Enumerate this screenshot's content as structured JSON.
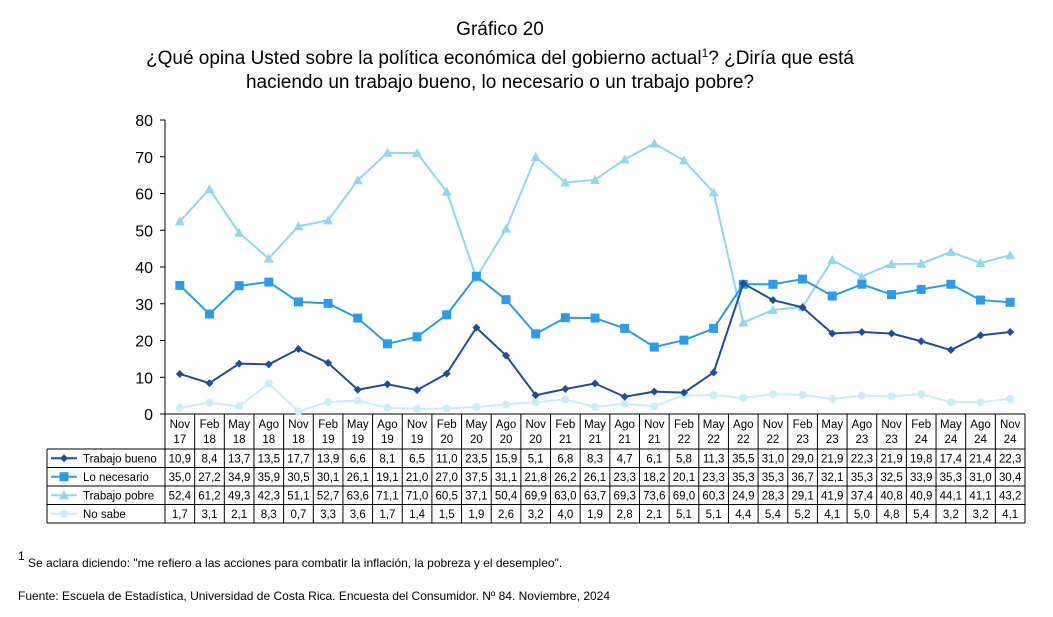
{
  "title": {
    "line1": "Gráfico 20",
    "line2_text": "¿Qué opina Usted sobre la política económica del gobierno actual",
    "line2_sup": "1",
    "line2_rest": "?  ¿Diría que está",
    "line3": "haciendo un trabajo bueno, lo necesario o un trabajo pobre?"
  },
  "footnote": {
    "sup": "1",
    "text": " Se aclara diciendo: \"me refiero a las acciones para combatir la inflación, la pobreza y el desempleo\"."
  },
  "source": "Fuente: Escuela de Estadística, Universidad de Costa Rica. Encuesta del Consumidor. Nº 84. Noviembre, 2024",
  "chart_data": {
    "type": "line",
    "ylim": [
      0,
      80
    ],
    "yticks": [
      0,
      10,
      20,
      30,
      40,
      50,
      60,
      70,
      80
    ],
    "grid": false,
    "legend": "data-table",
    "categories": [
      [
        "Nov",
        "17"
      ],
      [
        "Feb",
        "18"
      ],
      [
        "May",
        "18"
      ],
      [
        "Ago",
        "18"
      ],
      [
        "Nov",
        "18"
      ],
      [
        "Feb",
        "19"
      ],
      [
        "May",
        "19"
      ],
      [
        "Ago",
        "19"
      ],
      [
        "Nov",
        "19"
      ],
      [
        "Feb",
        "20"
      ],
      [
        "May",
        "20"
      ],
      [
        "Ago",
        "20"
      ],
      [
        "Nov",
        "20"
      ],
      [
        "Feb",
        "21"
      ],
      [
        "May",
        "21"
      ],
      [
        "Ago",
        "21"
      ],
      [
        "Nov",
        "21"
      ],
      [
        "Feb",
        "22"
      ],
      [
        "May",
        "22"
      ],
      [
        "Ago",
        "22"
      ],
      [
        "Nov",
        "22"
      ],
      [
        "Feb",
        "23"
      ],
      [
        "May",
        "23"
      ],
      [
        "Ago",
        "23"
      ],
      [
        "Nov",
        "23"
      ],
      [
        "Feb",
        "24"
      ],
      [
        "May",
        "24"
      ],
      [
        "Ago",
        "24"
      ],
      [
        "Nov",
        "24"
      ]
    ],
    "series": [
      {
        "name": "Trabajo bueno",
        "color": "#1F4E99",
        "marker": "diamond",
        "values": [
          10.9,
          8.4,
          13.7,
          13.5,
          17.7,
          13.9,
          6.6,
          8.1,
          6.5,
          11.0,
          23.5,
          15.9,
          5.1,
          6.8,
          8.3,
          4.7,
          6.1,
          5.8,
          11.3,
          35.5,
          31.0,
          29.0,
          21.9,
          22.3,
          21.9,
          19.8,
          17.4,
          21.4,
          22.3
        ],
        "labels": [
          "10,9",
          "8,4",
          "13,7",
          "13,5",
          "17,7",
          "13,9",
          "6,6",
          "8,1",
          "6,5",
          "11,0",
          "23,5",
          "15,9",
          "5,1",
          "6,8",
          "8,3",
          "4,7",
          "6,1",
          "5,8",
          "11,3",
          "35,5",
          "31,0",
          "29,0",
          "21,9",
          "22,3",
          "21,9",
          "19,8",
          "17,4",
          "21,4",
          "22,3"
        ]
      },
      {
        "name": "Lo necesario",
        "color": "#2E9BE6",
        "marker": "square",
        "values": [
          35.0,
          27.2,
          34.9,
          35.9,
          30.5,
          30.1,
          26.1,
          19.1,
          21.0,
          27.0,
          37.5,
          31.1,
          21.8,
          26.2,
          26.1,
          23.3,
          18.2,
          20.1,
          23.3,
          35.3,
          35.3,
          36.7,
          32.1,
          35.3,
          32.5,
          33.9,
          35.3,
          31.0,
          30.4
        ],
        "labels": [
          "35,0",
          "27,2",
          "34,9",
          "35,9",
          "30,5",
          "30,1",
          "26,1",
          "19,1",
          "21,0",
          "27,0",
          "37,5",
          "31,1",
          "21,8",
          "26,2",
          "26,1",
          "23,3",
          "18,2",
          "20,1",
          "23,3",
          "35,3",
          "35,3",
          "36,7",
          "32,1",
          "35,3",
          "32,5",
          "33,9",
          "35,3",
          "31,0",
          "30,4"
        ]
      },
      {
        "name": "Trabajo pobre",
        "color": "#8FD8EE",
        "marker": "triangle",
        "values": [
          52.4,
          61.2,
          49.3,
          42.3,
          51.1,
          52.7,
          63.6,
          71.1,
          71.0,
          60.5,
          37.1,
          50.4,
          69.9,
          63.0,
          63.7,
          69.3,
          73.6,
          69.0,
          60.3,
          24.9,
          28.3,
          29.1,
          41.9,
          37.4,
          40.8,
          40.9,
          44.1,
          41.1,
          43.2
        ],
        "labels": [
          "52,4",
          "61,2",
          "49,3",
          "42,3",
          "51,1",
          "52,7",
          "63,6",
          "71,1",
          "71,0",
          "60,5",
          "37,1",
          "50,4",
          "69,9",
          "63,0",
          "63,7",
          "69,3",
          "73,6",
          "69,0",
          "60,3",
          "24,9",
          "28,3",
          "29,1",
          "41,9",
          "37,4",
          "40,8",
          "40,9",
          "44,1",
          "41,1",
          "43,2"
        ]
      },
      {
        "name": "No sabe",
        "color": "#C9EEF8",
        "marker": "circle",
        "values": [
          1.7,
          3.1,
          2.1,
          8.3,
          0.7,
          3.3,
          3.6,
          1.7,
          1.4,
          1.5,
          1.9,
          2.6,
          3.2,
          4.0,
          1.9,
          2.8,
          2.1,
          5.1,
          5.1,
          4.4,
          5.4,
          5.2,
          4.1,
          5.0,
          4.8,
          5.4,
          3.2,
          3.2,
          4.1
        ],
        "labels": [
          "1,7",
          "3,1",
          "2,1",
          "8,3",
          "0,7",
          "3,3",
          "3,6",
          "1,7",
          "1,4",
          "1,5",
          "1,9",
          "2,6",
          "3,2",
          "4,0",
          "1,9",
          "2,8",
          "2,1",
          "5,1",
          "5,1",
          "4,4",
          "5,4",
          "5,2",
          "4,1",
          "5,0",
          "4,8",
          "5,4",
          "3,2",
          "3,2",
          "4,1"
        ]
      }
    ]
  }
}
